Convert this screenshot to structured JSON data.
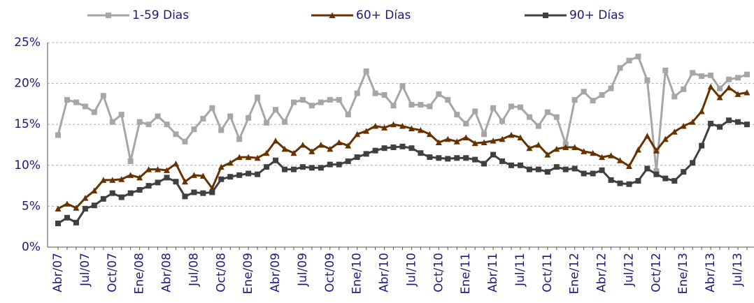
{
  "chart_data": {
    "type": "line",
    "categories": [
      "Abr/07",
      null,
      null,
      "Jul/07",
      null,
      null,
      "Oct/07",
      null,
      null,
      "Ene/08",
      null,
      null,
      "Abr/08",
      null,
      null,
      "Jul/08",
      null,
      null,
      "Oct/08",
      null,
      null,
      "Ene/09",
      null,
      null,
      "Abr/09",
      null,
      null,
      "Jul/09",
      null,
      null,
      "Oct/09",
      null,
      null,
      "Ene/10",
      null,
      null,
      "Abr/10",
      null,
      null,
      "Jul/10",
      null,
      null,
      "Oct/10",
      null,
      null,
      "Ene/11",
      null,
      null,
      "Abr/11",
      null,
      null,
      "Jul/11",
      null,
      null,
      "Oct/11",
      null,
      null,
      "Ene/12",
      null,
      null,
      "Abr/12",
      null,
      null,
      "Jul/12",
      null,
      null,
      "Oct/12",
      null,
      null,
      "Ene/13",
      null,
      null,
      "Abr/13",
      null,
      null,
      "Jul/13",
      null
    ],
    "series": [
      {
        "name": "1-59 Dias",
        "color": "#a6a6a6",
        "marker": "square",
        "values": [
          13.7,
          18.0,
          17.7,
          17.2,
          16.5,
          18.5,
          15.3,
          16.2,
          10.5,
          15.3,
          15.0,
          16.0,
          15.0,
          13.8,
          12.9,
          14.4,
          15.7,
          17.0,
          14.3,
          16.0,
          13.2,
          15.8,
          18.3,
          15.2,
          16.8,
          15.3,
          17.7,
          18.0,
          17.3,
          17.7,
          18.0,
          18.0,
          16.2,
          18.8,
          21.5,
          18.8,
          18.6,
          17.3,
          19.7,
          17.4,
          17.4,
          17.2,
          18.7,
          18.0,
          16.2,
          15.1,
          16.6,
          13.8,
          17.0,
          15.4,
          17.2,
          17.1,
          15.9,
          14.8,
          16.5,
          15.9,
          12.6,
          18.0,
          19.0,
          17.9,
          18.6,
          19.4,
          21.9,
          22.8,
          23.3,
          20.4,
          9.3,
          21.6,
          18.4,
          19.3,
          21.3,
          20.9,
          21.0,
          19.4,
          20.5,
          20.7,
          21.1
        ]
      },
      {
        "name": "60+ Días",
        "color": "#663300",
        "marker": "triangle",
        "values": [
          4.7,
          5.3,
          4.8,
          6.0,
          6.9,
          8.2,
          8.2,
          8.3,
          8.8,
          8.5,
          9.5,
          9.5,
          9.4,
          10.2,
          8.0,
          8.8,
          8.7,
          7.2,
          9.8,
          10.3,
          11.0,
          11.0,
          10.9,
          11.5,
          13.0,
          12.0,
          11.5,
          12.5,
          11.7,
          12.5,
          12.0,
          12.8,
          12.4,
          13.8,
          14.2,
          14.8,
          14.6,
          15.0,
          14.8,
          14.5,
          14.3,
          13.8,
          12.8,
          13.2,
          12.9,
          13.4,
          12.7,
          12.8,
          13.0,
          13.2,
          13.7,
          13.4,
          12.1,
          12.5,
          11.3,
          12.0,
          12.2,
          12.2,
          11.7,
          11.5,
          11.0,
          11.2,
          10.6,
          9.9,
          11.9,
          13.6,
          11.8,
          13.2,
          14.1,
          14.8,
          15.3,
          16.6,
          19.6,
          18.3,
          19.5,
          18.7,
          18.9
        ]
      },
      {
        "name": "90+ Días",
        "color": "#404040",
        "marker": "square",
        "values": [
          2.9,
          3.6,
          3.0,
          4.7,
          5.1,
          5.9,
          6.6,
          6.1,
          6.6,
          7.0,
          7.5,
          7.9,
          8.5,
          8.0,
          6.2,
          6.7,
          6.6,
          6.7,
          8.3,
          8.6,
          8.8,
          9.0,
          8.9,
          9.8,
          10.6,
          9.5,
          9.5,
          9.8,
          9.7,
          9.7,
          10.1,
          10.1,
          10.5,
          11.0,
          11.4,
          11.8,
          12.1,
          12.2,
          12.3,
          12.1,
          11.5,
          11.0,
          10.9,
          10.8,
          10.9,
          10.9,
          10.7,
          10.2,
          11.3,
          10.5,
          10.0,
          10.0,
          9.5,
          9.5,
          9.2,
          9.8,
          9.5,
          9.6,
          9.0,
          9.0,
          9.4,
          8.2,
          7.8,
          7.7,
          8.1,
          9.6,
          8.9,
          8.4,
          8.1,
          9.2,
          10.3,
          12.4,
          15.1,
          14.7,
          15.5,
          15.3,
          15.0
        ]
      }
    ],
    "ylim": [
      0,
      25
    ],
    "yticks": [
      {
        "value": 0,
        "label": "0%"
      },
      {
        "value": 5,
        "label": "5%"
      },
      {
        "value": 10,
        "label": "10%"
      },
      {
        "value": 15,
        "label": "15%"
      },
      {
        "value": 20,
        "label": "20%"
      },
      {
        "value": 25,
        "label": "25%"
      }
    ],
    "grid": true,
    "legend": "top"
  }
}
